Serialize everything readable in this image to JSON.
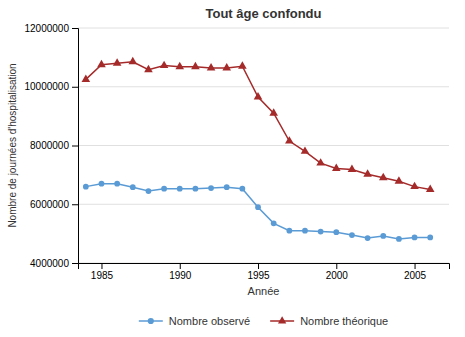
{
  "chart_data": {
    "type": "line",
    "title": "Tout âge confondu",
    "xlabel": "Année",
    "ylabel": "Nombre de journées d'hospitalisation",
    "x": [
      1984,
      1985,
      1986,
      1987,
      1988,
      1989,
      1990,
      1991,
      1992,
      1993,
      1994,
      1995,
      1996,
      1997,
      1998,
      1999,
      2000,
      2001,
      2002,
      2003,
      2004,
      2005,
      2006
    ],
    "series": [
      {
        "name": "Nombre observé",
        "color": "#5b9bd5",
        "marker": "circle",
        "values": [
          6600000,
          6700000,
          6700000,
          6580000,
          6450000,
          6530000,
          6530000,
          6530000,
          6550000,
          6580000,
          6530000,
          5900000,
          5350000,
          5100000,
          5100000,
          5070000,
          5050000,
          4950000,
          4850000,
          4920000,
          4820000,
          4870000,
          4870000
        ]
      },
      {
        "name": "Nombre théorique",
        "color": "#a52a2a",
        "marker": "triangle",
        "values": [
          10250000,
          10750000,
          10800000,
          10850000,
          10580000,
          10720000,
          10680000,
          10680000,
          10640000,
          10640000,
          10700000,
          9650000,
          9100000,
          8150000,
          7800000,
          7400000,
          7220000,
          7180000,
          7020000,
          6900000,
          6780000,
          6600000,
          6500000
        ]
      }
    ],
    "xlim": [
      1983.5,
      2007.2
    ],
    "ylim": [
      4000000,
      12000000
    ],
    "xticks": [
      1985,
      1990,
      1995,
      2000,
      2005
    ],
    "yticks": [
      4000000,
      6000000,
      8000000,
      10000000,
      12000000
    ],
    "grid": true,
    "legend": "bottom"
  }
}
